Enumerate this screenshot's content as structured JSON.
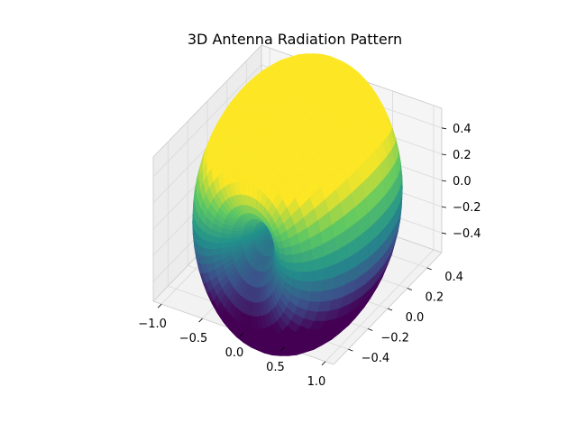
{
  "figure": {
    "background": "#ffffff"
  },
  "chart_data": {
    "type": "surface3d",
    "title": "3D Antenna Radiation Pattern",
    "xlabel": "",
    "ylabel": "",
    "zlabel": "",
    "pattern": "dipole sin(theta), lobes along x-axis",
    "xlim": [
      -1.1,
      1.1
    ],
    "ylim": [
      -0.55,
      0.55
    ],
    "zlim": [
      -0.55,
      0.55
    ],
    "x_ticks": [
      {
        "value": -1.0,
        "label": "−1.0"
      },
      {
        "value": -0.5,
        "label": "−0.5"
      },
      {
        "value": 0.0,
        "label": "0.0"
      },
      {
        "value": 0.5,
        "label": "0.5"
      },
      {
        "value": 1.0,
        "label": "1.0"
      }
    ],
    "y_ticks": [
      {
        "value": -0.4,
        "label": "−0.4"
      },
      {
        "value": -0.2,
        "label": "−0.2"
      },
      {
        "value": 0.0,
        "label": "0.0"
      },
      {
        "value": 0.2,
        "label": "0.2"
      },
      {
        "value": 0.4,
        "label": "0.4"
      }
    ],
    "z_ticks": [
      {
        "value": -0.4,
        "label": "−0.4"
      },
      {
        "value": -0.2,
        "label": "−0.2"
      },
      {
        "value": 0.0,
        "label": "0.0"
      },
      {
        "value": 0.2,
        "label": "0.2"
      },
      {
        "value": 0.4,
        "label": "0.4"
      }
    ],
    "colormap": "viridis",
    "colormap_stops": [
      "#440154",
      "#3b528b",
      "#21918c",
      "#5ec962",
      "#fde725"
    ],
    "grid": true,
    "pane_color": "#f2f2f2",
    "grid_color": "#d9d9d9"
  }
}
